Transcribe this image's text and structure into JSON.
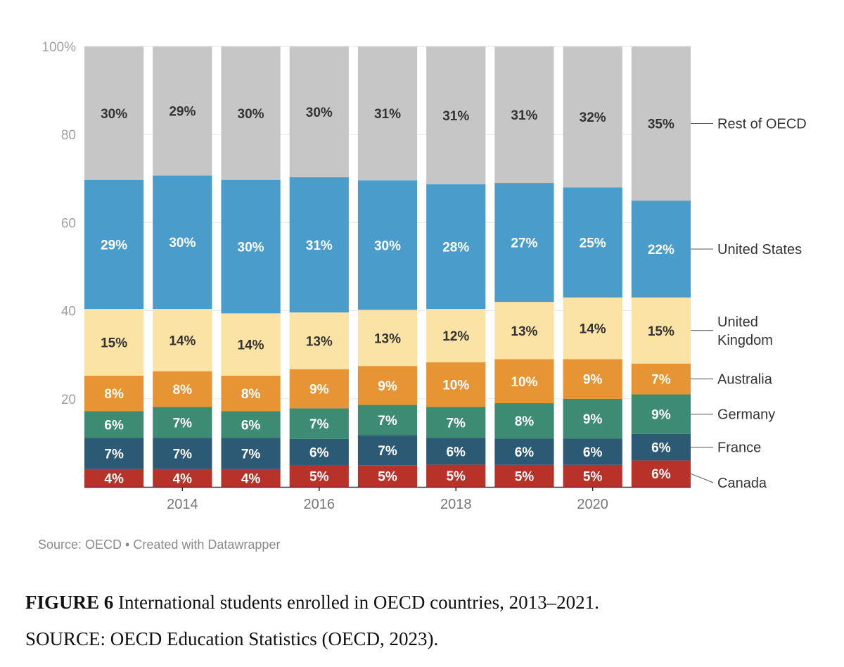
{
  "chart_data": {
    "type": "bar",
    "stacked": true,
    "normalized": true,
    "categories": [
      "2013",
      "2014",
      "2015",
      "2016",
      "2017",
      "2018",
      "2019",
      "2020",
      "2021"
    ],
    "x_tick_labels": [
      "2014",
      "2016",
      "2018",
      "2020"
    ],
    "y_ticks": [
      "100%",
      "80",
      "60",
      "40",
      "20"
    ],
    "ylim": [
      0,
      100
    ],
    "grid": true,
    "legend_placement": "right",
    "series": [
      {
        "name": "Canada",
        "color": "#b93229",
        "label_color": "#ffffff",
        "values": [
          4,
          4,
          4,
          5,
          5,
          5,
          5,
          5,
          6
        ],
        "labels": [
          "4%",
          "4%",
          "4%",
          "5%",
          "5%",
          "5%",
          "5%",
          "5%",
          "6%"
        ]
      },
      {
        "name": "France",
        "color": "#2c5a75",
        "label_color": "#ffffff",
        "values": [
          7,
          7,
          7,
          6,
          7,
          6,
          6,
          6,
          6
        ],
        "labels": [
          "7%",
          "7%",
          "7%",
          "6%",
          "7%",
          "6%",
          "6%",
          "6%",
          "6%"
        ]
      },
      {
        "name": "Germany",
        "color": "#3e8b73",
        "label_color": "#ffffff",
        "values": [
          6,
          7,
          6,
          7,
          7,
          7,
          8,
          9,
          9
        ],
        "labels": [
          "6%",
          "7%",
          "6%",
          "7%",
          "7%",
          "7%",
          "8%",
          "9%",
          "9%"
        ]
      },
      {
        "name": "Australia",
        "color": "#e79435",
        "label_color": "#ffffff",
        "values": [
          8,
          8,
          8,
          9,
          9,
          10,
          10,
          9,
          7
        ],
        "labels": [
          "8%",
          "8%",
          "8%",
          "9%",
          "9%",
          "10%",
          "10%",
          "9%",
          "7%"
        ]
      },
      {
        "name": "United Kingdom",
        "name_lines": [
          "United",
          "Kingdom"
        ],
        "color": "#fbe3a5",
        "label_color": "#333333",
        "values": [
          15,
          14,
          14,
          13,
          13,
          12,
          13,
          14,
          15
        ],
        "labels": [
          "15%",
          "14%",
          "14%",
          "13%",
          "13%",
          "12%",
          "13%",
          "14%",
          "15%"
        ]
      },
      {
        "name": "United States",
        "color": "#4a9dca",
        "label_color": "#ffffff",
        "values": [
          29,
          30,
          30,
          31,
          30,
          28,
          27,
          25,
          22
        ],
        "labels": [
          "29%",
          "30%",
          "30%",
          "31%",
          "30%",
          "28%",
          "27%",
          "25%",
          "22%"
        ]
      },
      {
        "name": "Rest of OECD",
        "color": "#c6c6c6",
        "label_color": "#333333",
        "values": [
          30,
          29,
          30,
          30,
          31,
          31,
          31,
          32,
          35
        ],
        "labels": [
          "30%",
          "29%",
          "30%",
          "30%",
          "31%",
          "31%",
          "31%",
          "32%",
          "35%"
        ]
      }
    ]
  },
  "source_note": "Source: OECD • Created with Datawrapper",
  "caption": {
    "figure_label": "FIGURE 6",
    "title": " International students enrolled in OECD countries, 2013–2021.",
    "source": "SOURCE: OECD Education Statistics (OECD, 2023)."
  }
}
